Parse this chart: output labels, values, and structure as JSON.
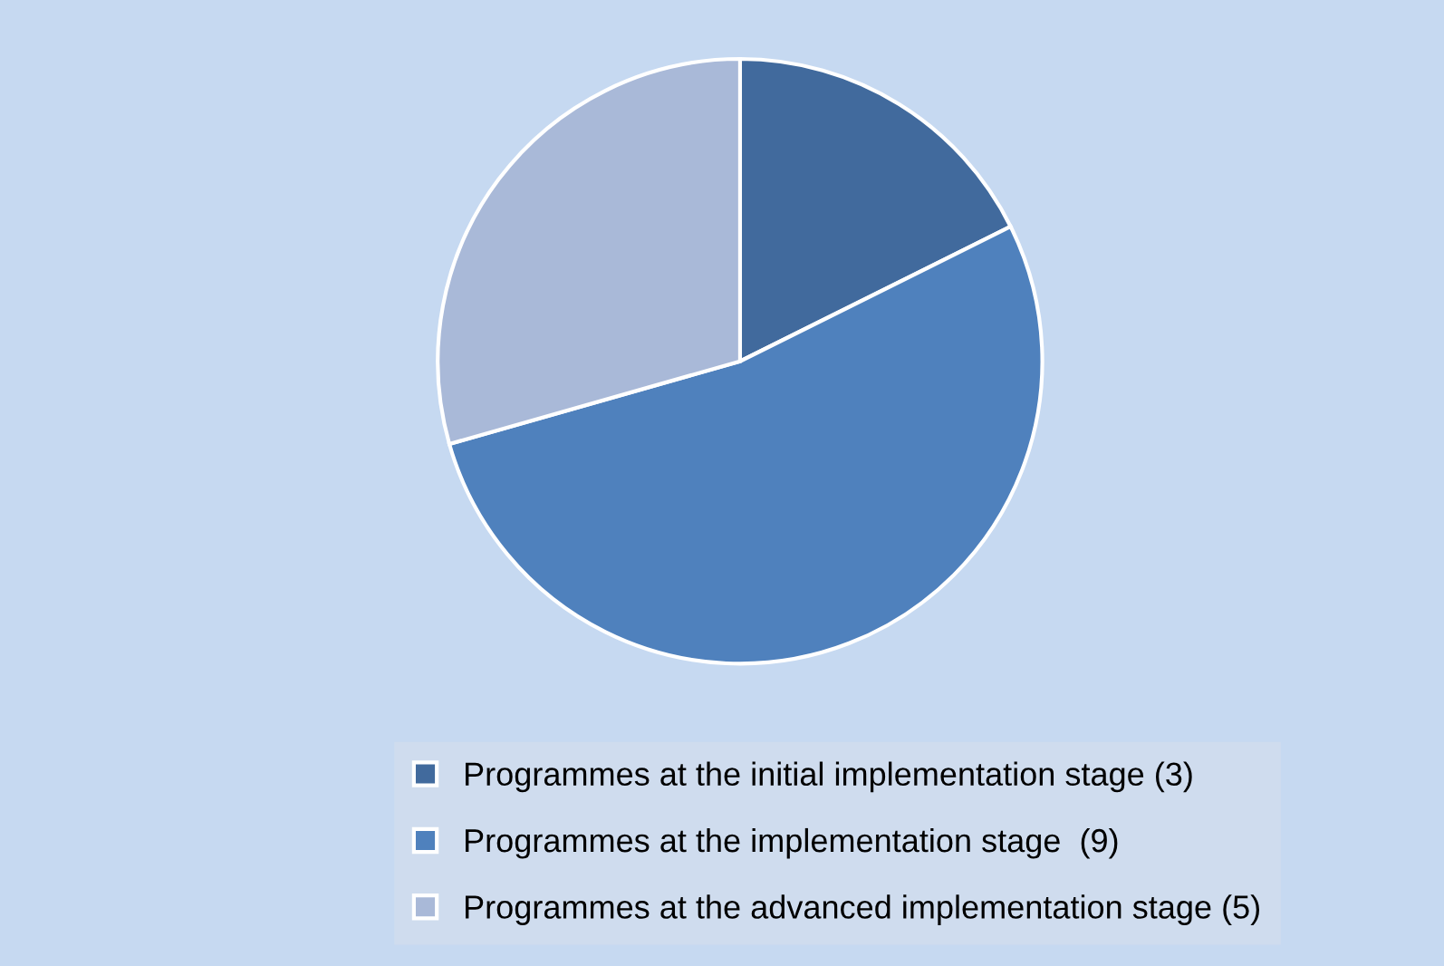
{
  "chart_data": {
    "type": "pie",
    "categories": [
      "Programmes at the initial implementation stage (3)",
      "Programmes at the implementation stage  (9)",
      "Programmes at the advanced implementation stage (5)"
    ],
    "values": [
      3,
      9,
      5
    ],
    "colors": [
      "#416a9d",
      "#4f81bd",
      "#a9b9d8"
    ],
    "legend": "bottom"
  }
}
